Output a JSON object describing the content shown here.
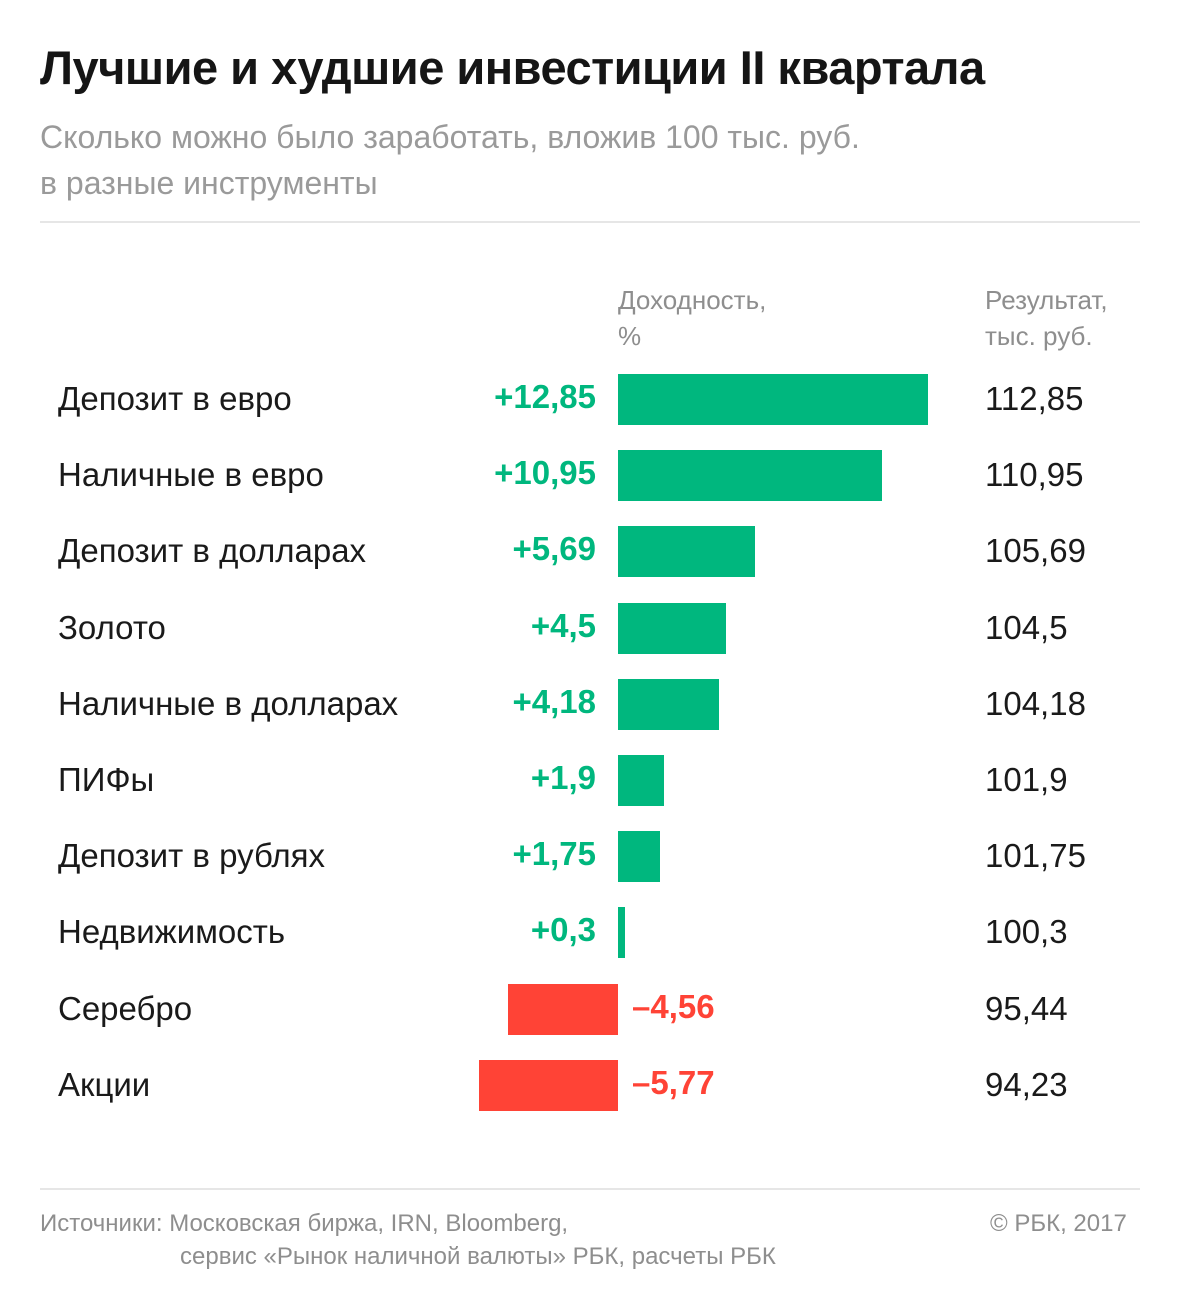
{
  "title": "Лучшие и худшие инвестиции II квартала",
  "subtitle_line1": "Сколько можно было заработать, вложив 100 тыс. руб.",
  "subtitle_line2": "в разные инструменты",
  "col_yield_line1": "Доходность,",
  "col_yield_line2": "%",
  "col_result_line1": "Результат,",
  "col_result_line2": "тыс. руб.",
  "footer_sources_line1": "Источники: Московская биржа, IRN, Bloomberg,",
  "footer_sources_line2": "сервис «Рынок наличной валюты» РБК, расчеты РБК",
  "footer_copyright": "© РБК, 2017",
  "colors": {
    "positive": "#00b77e",
    "negative": "#ff4336"
  },
  "chart_data": {
    "type": "bar",
    "orientation": "horizontal",
    "categories": [
      "Депозит в евро",
      "Наличные в евро",
      "Депозит в долларах",
      "Золото",
      "Наличные в долларах",
      "ПИФы",
      "Депозит в рублях",
      "Недвижимость",
      "Серебро",
      "Акции"
    ],
    "values": [
      12.85,
      10.95,
      5.69,
      4.5,
      4.18,
      1.9,
      1.75,
      0.3,
      -4.56,
      -5.77
    ],
    "value_labels": [
      "+12,85",
      "+10,95",
      "+5,69",
      "+4,5",
      "+4,18",
      "+1,9",
      "+1,75",
      "+0,3",
      "–4,56",
      "–5,77"
    ],
    "results": [
      "112,85",
      "110,95",
      "105,69",
      "104,5",
      "104,18",
      "101,9",
      "101,75",
      "100,3",
      "95,44",
      "94,23"
    ],
    "title": "Лучшие и худшие инвестиции II квартала",
    "xlabel": "Доходность, %",
    "grid": false
  }
}
